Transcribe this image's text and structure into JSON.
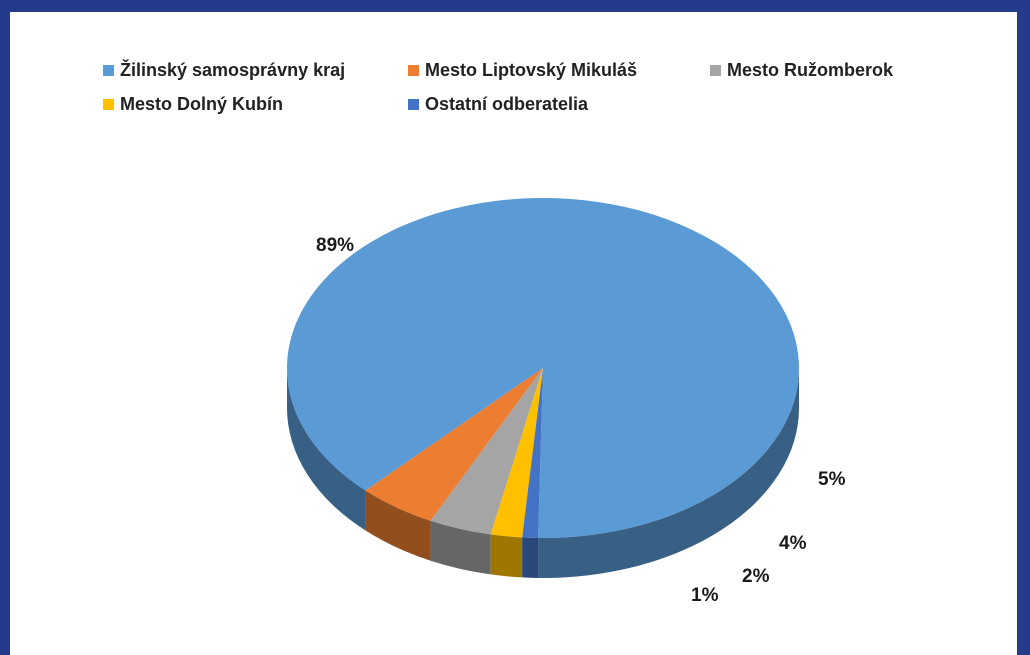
{
  "colors": {
    "frame": "#243b8c",
    "background": "#ffffff"
  },
  "chart_data": {
    "type": "pie",
    "title": "",
    "three_d": true,
    "legend_position": "top",
    "categories": [
      "Žilinský samosprávny kraj",
      "Mesto Liptovský Mikuláš",
      "Mesto Ružomberok",
      "Mesto Dolný Kubín",
      "Ostatní odberatelia"
    ],
    "values": [
      89,
      5,
      4,
      2,
      1
    ],
    "labels": [
      "89%",
      "5%",
      "4%",
      "2%",
      "1%"
    ],
    "colors": [
      "#5b9bd5",
      "#ed7d31",
      "#a5a5a5",
      "#ffc000",
      "#4472c4"
    ]
  }
}
